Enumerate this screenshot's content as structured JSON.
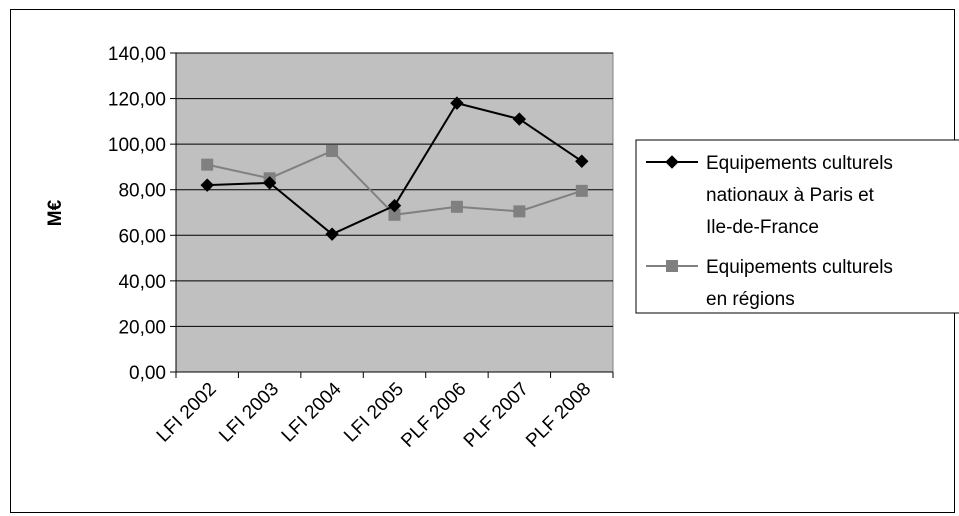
{
  "chart_data": {
    "type": "line",
    "categories": [
      "LFI 2002",
      "LFI 2003",
      "LFI 2004",
      "LFI 2005",
      "PLF 2006",
      "PLF 2007",
      "PLF 2008"
    ],
    "ylabel": "M€",
    "xlabel": "",
    "title": "",
    "ylim": [
      0,
      140
    ],
    "yticks": [
      "0,00",
      "20,00",
      "40,00",
      "60,00",
      "80,00",
      "100,00",
      "120,00",
      "140,00"
    ],
    "grid": true,
    "legend_position": "right",
    "plot_background": "#c0c0c0",
    "series": [
      {
        "name_lines": [
          "Equipements culturels",
          "nationaux à Paris et",
          "Ile-de-France"
        ],
        "marker": "diamond",
        "color": "#000000",
        "values": [
          82,
          83,
          60.5,
          73,
          118,
          111,
          92.5
        ]
      },
      {
        "name_lines": [
          "Equipements culturels",
          "en régions"
        ],
        "marker": "square",
        "color": "#808080",
        "values": [
          91,
          85,
          97,
          69,
          72.5,
          70.5,
          79.5
        ]
      }
    ]
  }
}
